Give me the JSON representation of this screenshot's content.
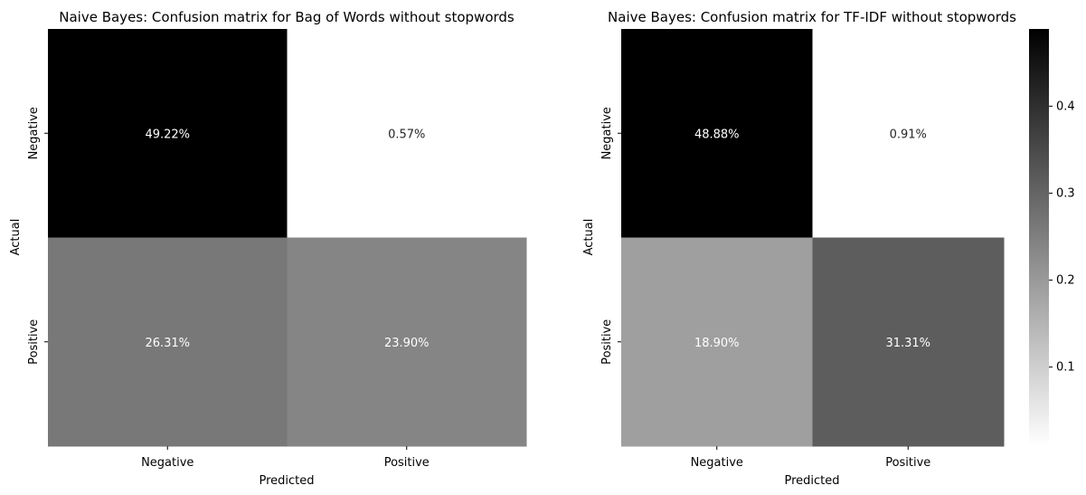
{
  "chart_data": [
    {
      "type": "heatmap",
      "title": "Naive Bayes: Confusion matrix for Bag of Words without stopwords",
      "xlabel": "Predicted",
      "ylabel": "Actual",
      "x_categories": [
        "Negative",
        "Positive"
      ],
      "y_categories": [
        "Negative",
        "Positive"
      ],
      "values": [
        [
          0.4922,
          0.0057
        ],
        [
          0.2631,
          0.239
        ]
      ],
      "labels": [
        [
          "49.22%",
          "0.57%"
        ],
        [
          "26.31%",
          "23.90%"
        ]
      ],
      "colormap": "Greys"
    },
    {
      "type": "heatmap",
      "title": "Naive Bayes: Confusion matrix for TF-IDF without stopwords",
      "xlabel": "Predicted",
      "ylabel": "Actual",
      "x_categories": [
        "Negative",
        "Positive"
      ],
      "y_categories": [
        "Negative",
        "Positive"
      ],
      "values": [
        [
          0.4888,
          0.0091
        ],
        [
          0.189,
          0.3131
        ]
      ],
      "labels": [
        [
          "48.88%",
          "0.91%"
        ],
        [
          "18.90%",
          "31.31%"
        ]
      ],
      "colormap": "Greys",
      "colorbar": {
        "range": [
          0.0091,
          0.4888
        ],
        "ticks": [
          0.1,
          0.2,
          0.3,
          0.4
        ],
        "tick_labels": [
          "0.1",
          "0.2",
          "0.3",
          "0.4"
        ]
      }
    }
  ]
}
